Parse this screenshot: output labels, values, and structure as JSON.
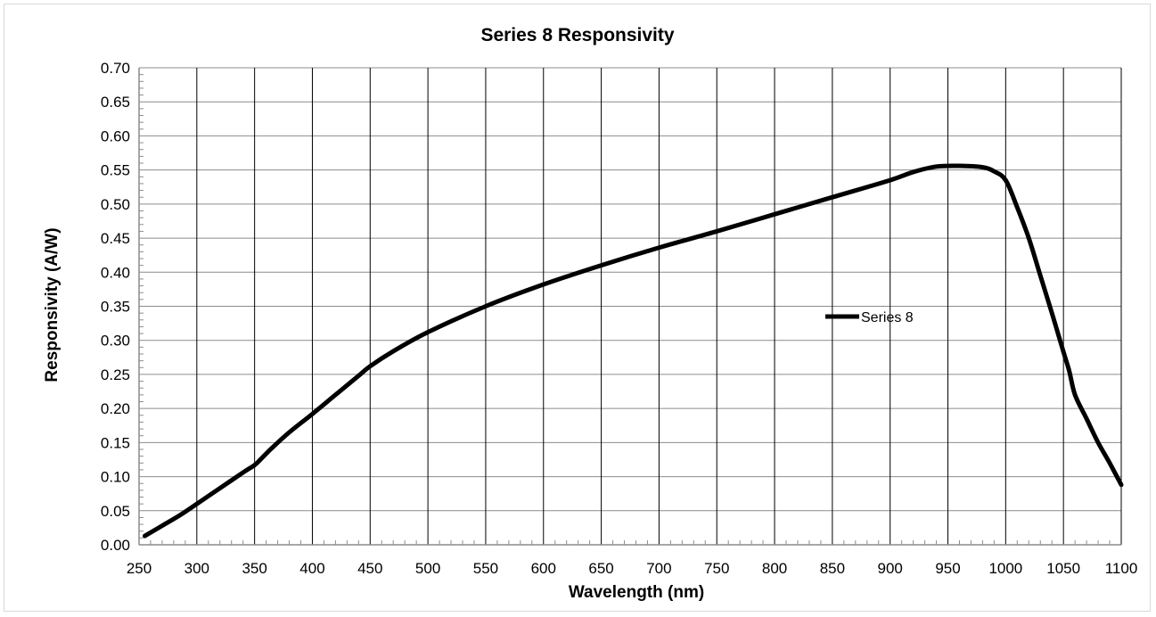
{
  "chart_data": {
    "type": "line",
    "title": "Series 8 Responsivity",
    "xlabel": "Wavelength (nm)",
    "ylabel": "Responsivity (A/W)",
    "xlim": [
      250,
      1100
    ],
    "ylim": [
      0,
      0.7
    ],
    "x_ticks": [
      "250",
      "300",
      "350",
      "400",
      "450",
      "500",
      "550",
      "600",
      "650",
      "700",
      "750",
      "800",
      "850",
      "900",
      "950",
      "1000",
      "1050",
      "1100"
    ],
    "y_ticks": [
      "0.00",
      "0.05",
      "0.10",
      "0.15",
      "0.20",
      "0.25",
      "0.30",
      "0.35",
      "0.40",
      "0.45",
      "0.50",
      "0.55",
      "0.60",
      "0.65",
      "0.70"
    ],
    "grid": {
      "vertical": true,
      "horizontal": true
    },
    "legend_position": "center-right",
    "series": [
      {
        "name": "Series 8",
        "color": "#000000",
        "x": [
          255,
          270,
          285,
          300,
          320,
          340,
          350,
          355,
          365,
          380,
          400,
          420,
          440,
          450,
          470,
          500,
          550,
          600,
          650,
          700,
          750,
          800,
          850,
          900,
          920,
          940,
          960,
          980,
          990,
          1000,
          1010,
          1020,
          1030,
          1040,
          1050,
          1055,
          1060,
          1070,
          1080,
          1090,
          1100
        ],
        "y": [
          0.013,
          0.028,
          0.043,
          0.06,
          0.083,
          0.106,
          0.117,
          0.125,
          0.142,
          0.165,
          0.192,
          0.22,
          0.248,
          0.262,
          0.284,
          0.312,
          0.35,
          0.382,
          0.41,
          0.436,
          0.46,
          0.485,
          0.51,
          0.535,
          0.547,
          0.555,
          0.556,
          0.554,
          0.548,
          0.535,
          0.495,
          0.45,
          0.395,
          0.34,
          0.283,
          0.255,
          0.22,
          0.185,
          0.15,
          0.12,
          0.088
        ]
      }
    ]
  }
}
